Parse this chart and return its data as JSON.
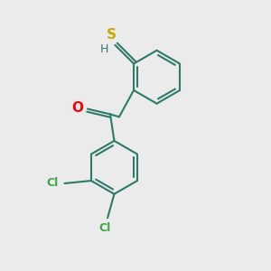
{
  "background_color": "#ebebeb",
  "bond_color": "#2d7a6a",
  "cl_color": "#3aaa3a",
  "o_color": "#ff0000",
  "s_color": "#ccaa00",
  "h_color": "#2d7a6a",
  "line_width": 1.5,
  "figsize": [
    3.0,
    3.0
  ],
  "dpi": 100,
  "xlim": [
    0,
    10
  ],
  "ylim": [
    0,
    10
  ]
}
